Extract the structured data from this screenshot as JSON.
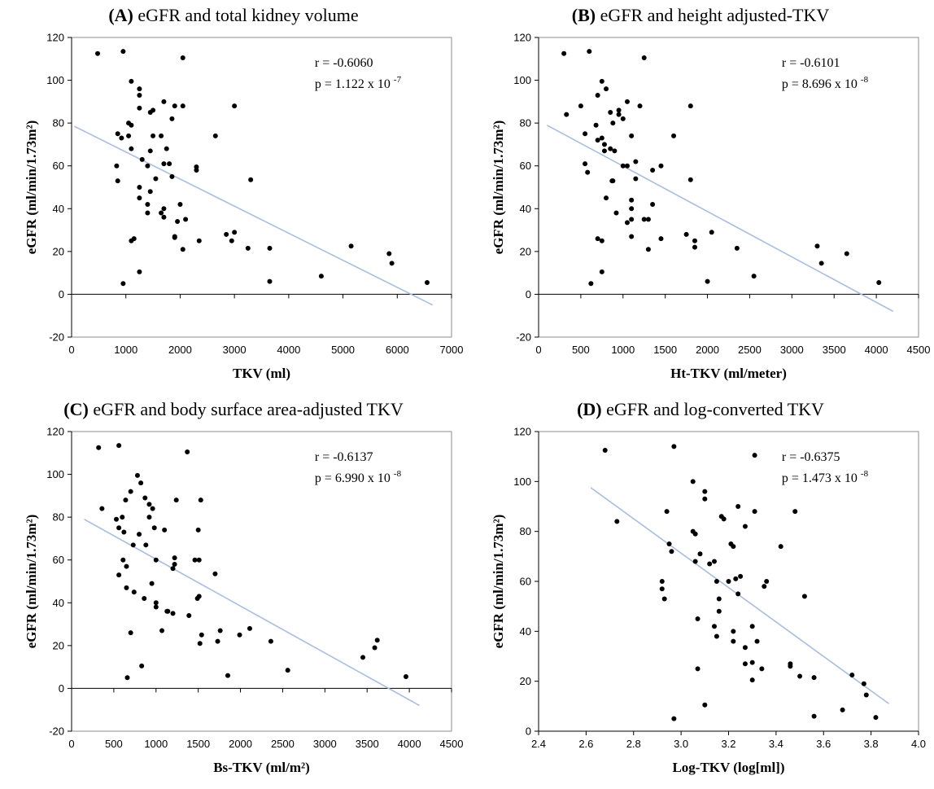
{
  "chart_data": [
    {
      "type": "scatter",
      "id": "a",
      "title_letter": "(A)",
      "title": "eGFR and total kidney volume",
      "xlabel": "TKV (ml)",
      "ylabel": "eGFR  (ml/min/1.73m²)",
      "xlim": [
        0,
        7000
      ],
      "xstep": 1000,
      "ylim": [
        -20,
        120
      ],
      "ystep": 20,
      "xdecimals": 0,
      "stat_r": "r = -0.6060",
      "stat_p": "p = 1.122 x 10",
      "stat_p_exp": "-7",
      "trendline": {
        "x": [
          50,
          6650
        ],
        "y": [
          78.5,
          -5
        ]
      },
      "x": [
        480,
        950,
        1100,
        2050,
        1250,
        1250,
        1500,
        1450,
        1700,
        3000,
        1900,
        1250,
        850,
        2050,
        920,
        1100,
        1050,
        1650,
        1500,
        2650,
        1850,
        1050,
        1100,
        1450,
        1400,
        1750,
        1700,
        1300,
        2300,
        2300,
        1550,
        830,
        1850,
        850,
        1800,
        1250,
        3300,
        1250,
        1400,
        1700,
        1650,
        2000,
        1400,
        1450,
        2100,
        1700,
        1950,
        2050,
        1150,
        1900,
        2850,
        3000,
        2350,
        1100,
        1900,
        2950,
        3250,
        3650,
        1250,
        950,
        3650,
        4600,
        5150,
        5850,
        5900,
        6550
      ],
      "y": [
        112.5,
        113.5,
        99.5,
        110.5,
        96,
        93,
        86,
        85,
        90,
        88,
        88,
        87,
        75,
        88,
        73,
        79,
        80,
        74,
        74,
        74,
        82,
        74,
        68,
        67,
        60,
        68,
        61,
        63,
        59.5,
        58,
        54,
        60,
        55,
        53,
        61,
        50,
        53.5,
        45,
        42,
        36,
        38,
        42,
        38,
        48,
        35,
        40,
        34,
        21,
        26,
        26.5,
        28,
        29,
        25,
        25,
        27,
        25,
        21.5,
        21.5,
        10.5,
        5,
        6,
        8.5,
        22.5,
        19,
        14.5,
        5.5
      ]
    },
    {
      "type": "scatter",
      "id": "b",
      "title_letter": "(B)",
      "title": "eGFR and height  adjusted-TKV",
      "xlabel": "Ht-TKV  (ml/meter)",
      "ylabel": "eGFR  (ml/min/1.73m²)",
      "xlim": [
        0,
        4500
      ],
      "xstep": 500,
      "ylim": [
        -20,
        120
      ],
      "ystep": 20,
      "xdecimals": 0,
      "stat_r": "r = -0.6101",
      "stat_p": "p = 8.696 x 10",
      "stat_p_exp": "-8",
      "trendline": {
        "x": [
          100,
          4200
        ],
        "y": [
          79,
          -8
        ]
      },
      "x": [
        300,
        600,
        1250,
        750,
        800,
        500,
        700,
        950,
        1050,
        1200,
        1800,
        880,
        850,
        950,
        1000,
        1100,
        750,
        700,
        780,
        850,
        1600,
        550,
        680,
        900,
        330,
        1050,
        1000,
        1150,
        1350,
        1450,
        550,
        580,
        870,
        880,
        1150,
        1800,
        1100,
        1350,
        800,
        1100,
        920,
        1300,
        700,
        750,
        1100,
        1050,
        1250,
        1100,
        2050,
        1750,
        1850,
        1450,
        1300,
        1850,
        2350,
        3300,
        3350,
        3650,
        750,
        4030,
        2550,
        2000,
        620,
        780
      ],
      "y": [
        112.5,
        113.5,
        110.5,
        99.5,
        96,
        88,
        93,
        86,
        90,
        88,
        88,
        80,
        85,
        84,
        82,
        74,
        73,
        72,
        67,
        68,
        74,
        75,
        79,
        67,
        84,
        60,
        60,
        62,
        58,
        60,
        61,
        57,
        53,
        53,
        54,
        53.5,
        44,
        42,
        45,
        40,
        38,
        35,
        26,
        25,
        35,
        33.5,
        35,
        27,
        29,
        28,
        25,
        26,
        21,
        22,
        21.5,
        22.5,
        14.5,
        19,
        10.5,
        5.5,
        8.5,
        6,
        5,
        70
      ]
    },
    {
      "type": "scatter",
      "id": "c",
      "title_letter": "(C)",
      "title": "eGFR and body surface area-adjusted TKV",
      "xlabel": "Bs-TKV (ml/m²)",
      "ylabel": "eGFR  (ml/min/1.73m²)",
      "xlim": [
        0,
        4500
      ],
      "xstep": 500,
      "ylim": [
        -20,
        120
      ],
      "ystep": 20,
      "xdecimals": 0,
      "stat_r": "r = -0.6137",
      "stat_p": "p = 6.990 x 10",
      "stat_p_exp": "-8",
      "trendline": {
        "x": [
          150,
          4120
        ],
        "y": [
          79,
          -8
        ]
      },
      "x": [
        320,
        560,
        1370,
        780,
        820,
        870,
        920,
        960,
        1240,
        1530,
        640,
        700,
        980,
        920,
        800,
        880,
        1100,
        1500,
        360,
        530,
        560,
        620,
        600,
        1220,
        730,
        1510,
        1000,
        1200,
        1220,
        1460,
        560,
        650,
        610,
        650,
        1700,
        1490,
        1000,
        860,
        950,
        1000,
        740,
        1130,
        1200,
        1540,
        1140,
        1390,
        1990,
        2110,
        2360,
        1760,
        1730,
        1520,
        2560,
        1850,
        3450,
        3590,
        3620,
        3960,
        830,
        660,
        700,
        1070,
        1510
      ],
      "y": [
        112.5,
        113.5,
        110.5,
        99.5,
        96,
        89,
        86,
        84,
        88,
        88,
        88,
        92,
        75,
        80,
        72,
        67,
        74,
        74,
        84,
        79,
        75,
        73,
        80,
        61,
        67,
        60,
        60,
        56,
        58,
        60,
        53,
        57,
        60,
        47,
        53.5,
        42,
        40,
        42,
        49,
        38,
        45,
        36,
        35,
        25,
        36,
        34,
        25,
        28,
        22,
        27,
        22,
        21,
        8.5,
        6,
        14.5,
        19,
        22.5,
        5.5,
        10.5,
        5,
        26,
        27,
        43
      ]
    },
    {
      "type": "scatter",
      "id": "d",
      "title_letter": "(D)",
      "title": "eGFR and log-converted TKV",
      "xlabel": "Log-TKV  (log[ml])",
      "ylabel": "eGFR  (ml/min/1.73m²)",
      "xlim": [
        2.4,
        4.0
      ],
      "xstep": 0.2,
      "ylim": [
        0,
        120
      ],
      "ystep": 20,
      "xdecimals": 1,
      "stat_r": "r =  -0.6375",
      "stat_p": "p = 1.473 x 10",
      "stat_p_exp": "-8",
      "trendline": {
        "x": [
          2.62,
          3.875
        ],
        "y": [
          97.5,
          11
        ]
      },
      "x": [
        2.68,
        2.97,
        3.31,
        3.05,
        3.1,
        3.1,
        3.17,
        3.18,
        3.24,
        3.31,
        3.48,
        3.27,
        2.94,
        3.05,
        3.06,
        2.95,
        2.96,
        3.21,
        3.22,
        3.42,
        3.52,
        3.08,
        3.06,
        3.15,
        3.12,
        3.23,
        2.92,
        2.92,
        2.93,
        3.2,
        3.36,
        3.35,
        3.24,
        3.16,
        3.25,
        3.07,
        3.16,
        3.14,
        3.3,
        3.22,
        3.15,
        3.07,
        3.22,
        3.34,
        3.3,
        3.27,
        3.32,
        3.46,
        3.46,
        3.27,
        3.5,
        3.56,
        3.72,
        3.78,
        3.3,
        3.77,
        3.68,
        3.56,
        3.82,
        3.1,
        2.97,
        3.14,
        2.73
      ],
      "y": [
        112.5,
        114,
        110.5,
        100,
        96,
        93,
        86,
        85,
        90,
        88,
        88,
        82,
        88,
        80,
        79,
        75,
        72,
        75,
        74,
        74,
        54,
        71,
        68,
        60,
        67,
        61,
        60,
        57,
        53,
        60,
        60,
        58,
        55,
        53,
        62,
        45,
        48,
        42,
        42,
        40,
        38,
        25,
        36,
        25,
        27.5,
        33.5,
        36,
        27,
        26,
        27,
        22,
        21.5,
        22.5,
        14.5,
        20.5,
        19,
        8.5,
        6,
        5.5,
        10.5,
        5,
        68,
        84
      ]
    }
  ]
}
